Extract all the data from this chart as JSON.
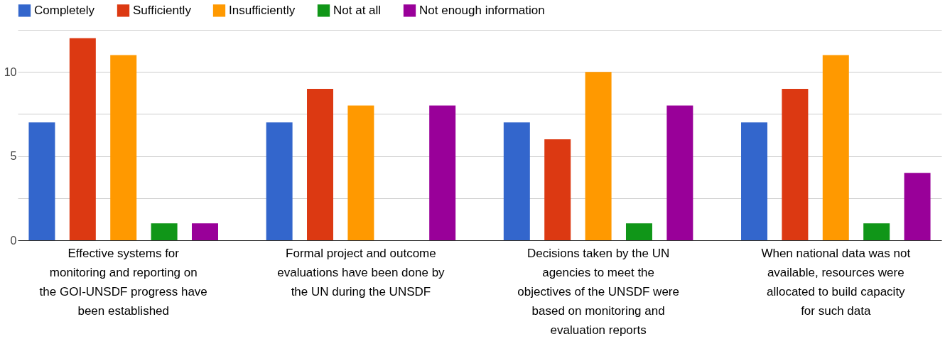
{
  "chart_data": {
    "type": "bar",
    "categories": [
      "Effective systems for monitoring and reporting on the GOI-UNSDF progress have been established",
      "Formal project and outcome evaluations have been done by the UN during the UNSDF",
      "Decisions taken by the UN agencies to meet the objectives of the UNSDF were based on monitoring and evaluation reports",
      "When national data was not available, resources were allocated to build capacity for such data"
    ],
    "series": [
      {
        "name": "Completely",
        "color": "#3366cc",
        "values": [
          7,
          7,
          7,
          7
        ]
      },
      {
        "name": "Sufficiently",
        "color": "#dc3912",
        "values": [
          12,
          9,
          6,
          9
        ]
      },
      {
        "name": "Insufficiently",
        "color": "#ff9900",
        "values": [
          11,
          8,
          10,
          11
        ]
      },
      {
        "name": "Not at all",
        "color": "#109618",
        "values": [
          1,
          0,
          1,
          1
        ]
      },
      {
        "name": "Not enough information",
        "color": "#990099",
        "values": [
          1,
          8,
          8,
          4
        ]
      }
    ],
    "ylim": [
      0,
      12.5
    ],
    "yticks": [
      0,
      {
        "value": 2.5,
        "label": null
      },
      5,
      {
        "value": 7.5,
        "label": null
      },
      10,
      {
        "value": 12.5,
        "label": null
      }
    ],
    "grid": "y",
    "legend": "top"
  }
}
